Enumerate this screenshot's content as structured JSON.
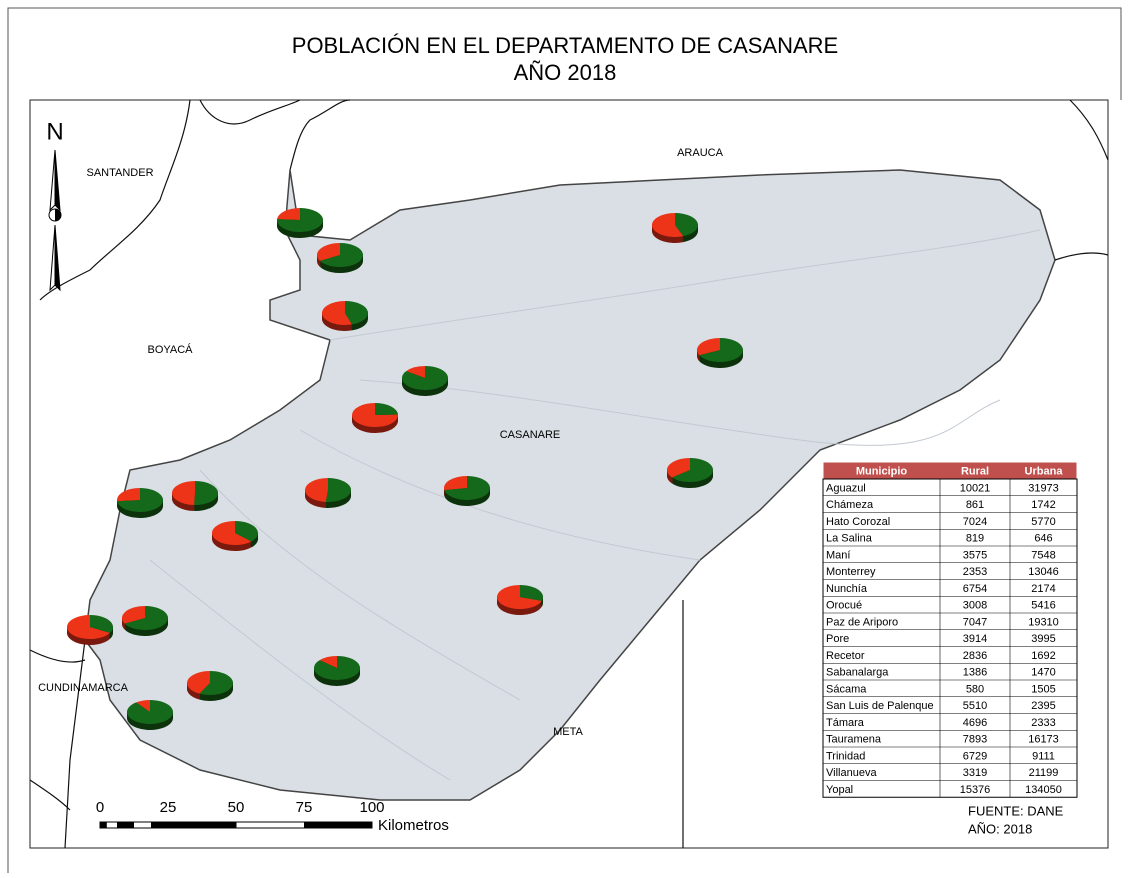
{
  "title": [
    "POBLACIÓN EN EL DEPARTAMENTO DE CASANARE",
    "AÑO 2018"
  ],
  "north": "N",
  "regions": [
    "SANTANDER",
    "BOYACÁ",
    "ARAUCA",
    "CASANARE",
    "CUNDINAMARCA",
    "META"
  ],
  "table": {
    "header": [
      "Municipio",
      "Rural",
      "Urbana"
    ],
    "rows": [
      [
        "Aguazul",
        10021,
        31973
      ],
      [
        "Chámeza",
        861,
        1742
      ],
      [
        "Hato Corozal",
        7024,
        5770
      ],
      [
        "La Salina",
        819,
        646
      ],
      [
        "Maní",
        3575,
        7548
      ],
      [
        "Monterrey",
        2353,
        13046
      ],
      [
        "Nunchía",
        6754,
        2174
      ],
      [
        "Orocué",
        3008,
        5416
      ],
      [
        "Paz de Ariporo",
        7047,
        19310
      ],
      [
        "Pore",
        3914,
        3995
      ],
      [
        "Recetor",
        2836,
        1692
      ],
      [
        "Sabanalarga",
        1386,
        1470
      ],
      [
        "Sácama",
        580,
        1505
      ],
      [
        "San Luis de Palenque",
        5510,
        2395
      ],
      [
        "Támara",
        4696,
        2333
      ],
      [
        "Tauramena",
        7893,
        16173
      ],
      [
        "Trinidad",
        6729,
        9111
      ],
      [
        "Villanueva",
        3319,
        21199
      ],
      [
        "Yopal",
        15376,
        134050
      ]
    ]
  },
  "scale": {
    "ticks": [
      0,
      25,
      50,
      75,
      100
    ],
    "unit": "Kilometros"
  },
  "source": [
    "FUENTE: DANE",
    "AÑO: 2018"
  ]
}
